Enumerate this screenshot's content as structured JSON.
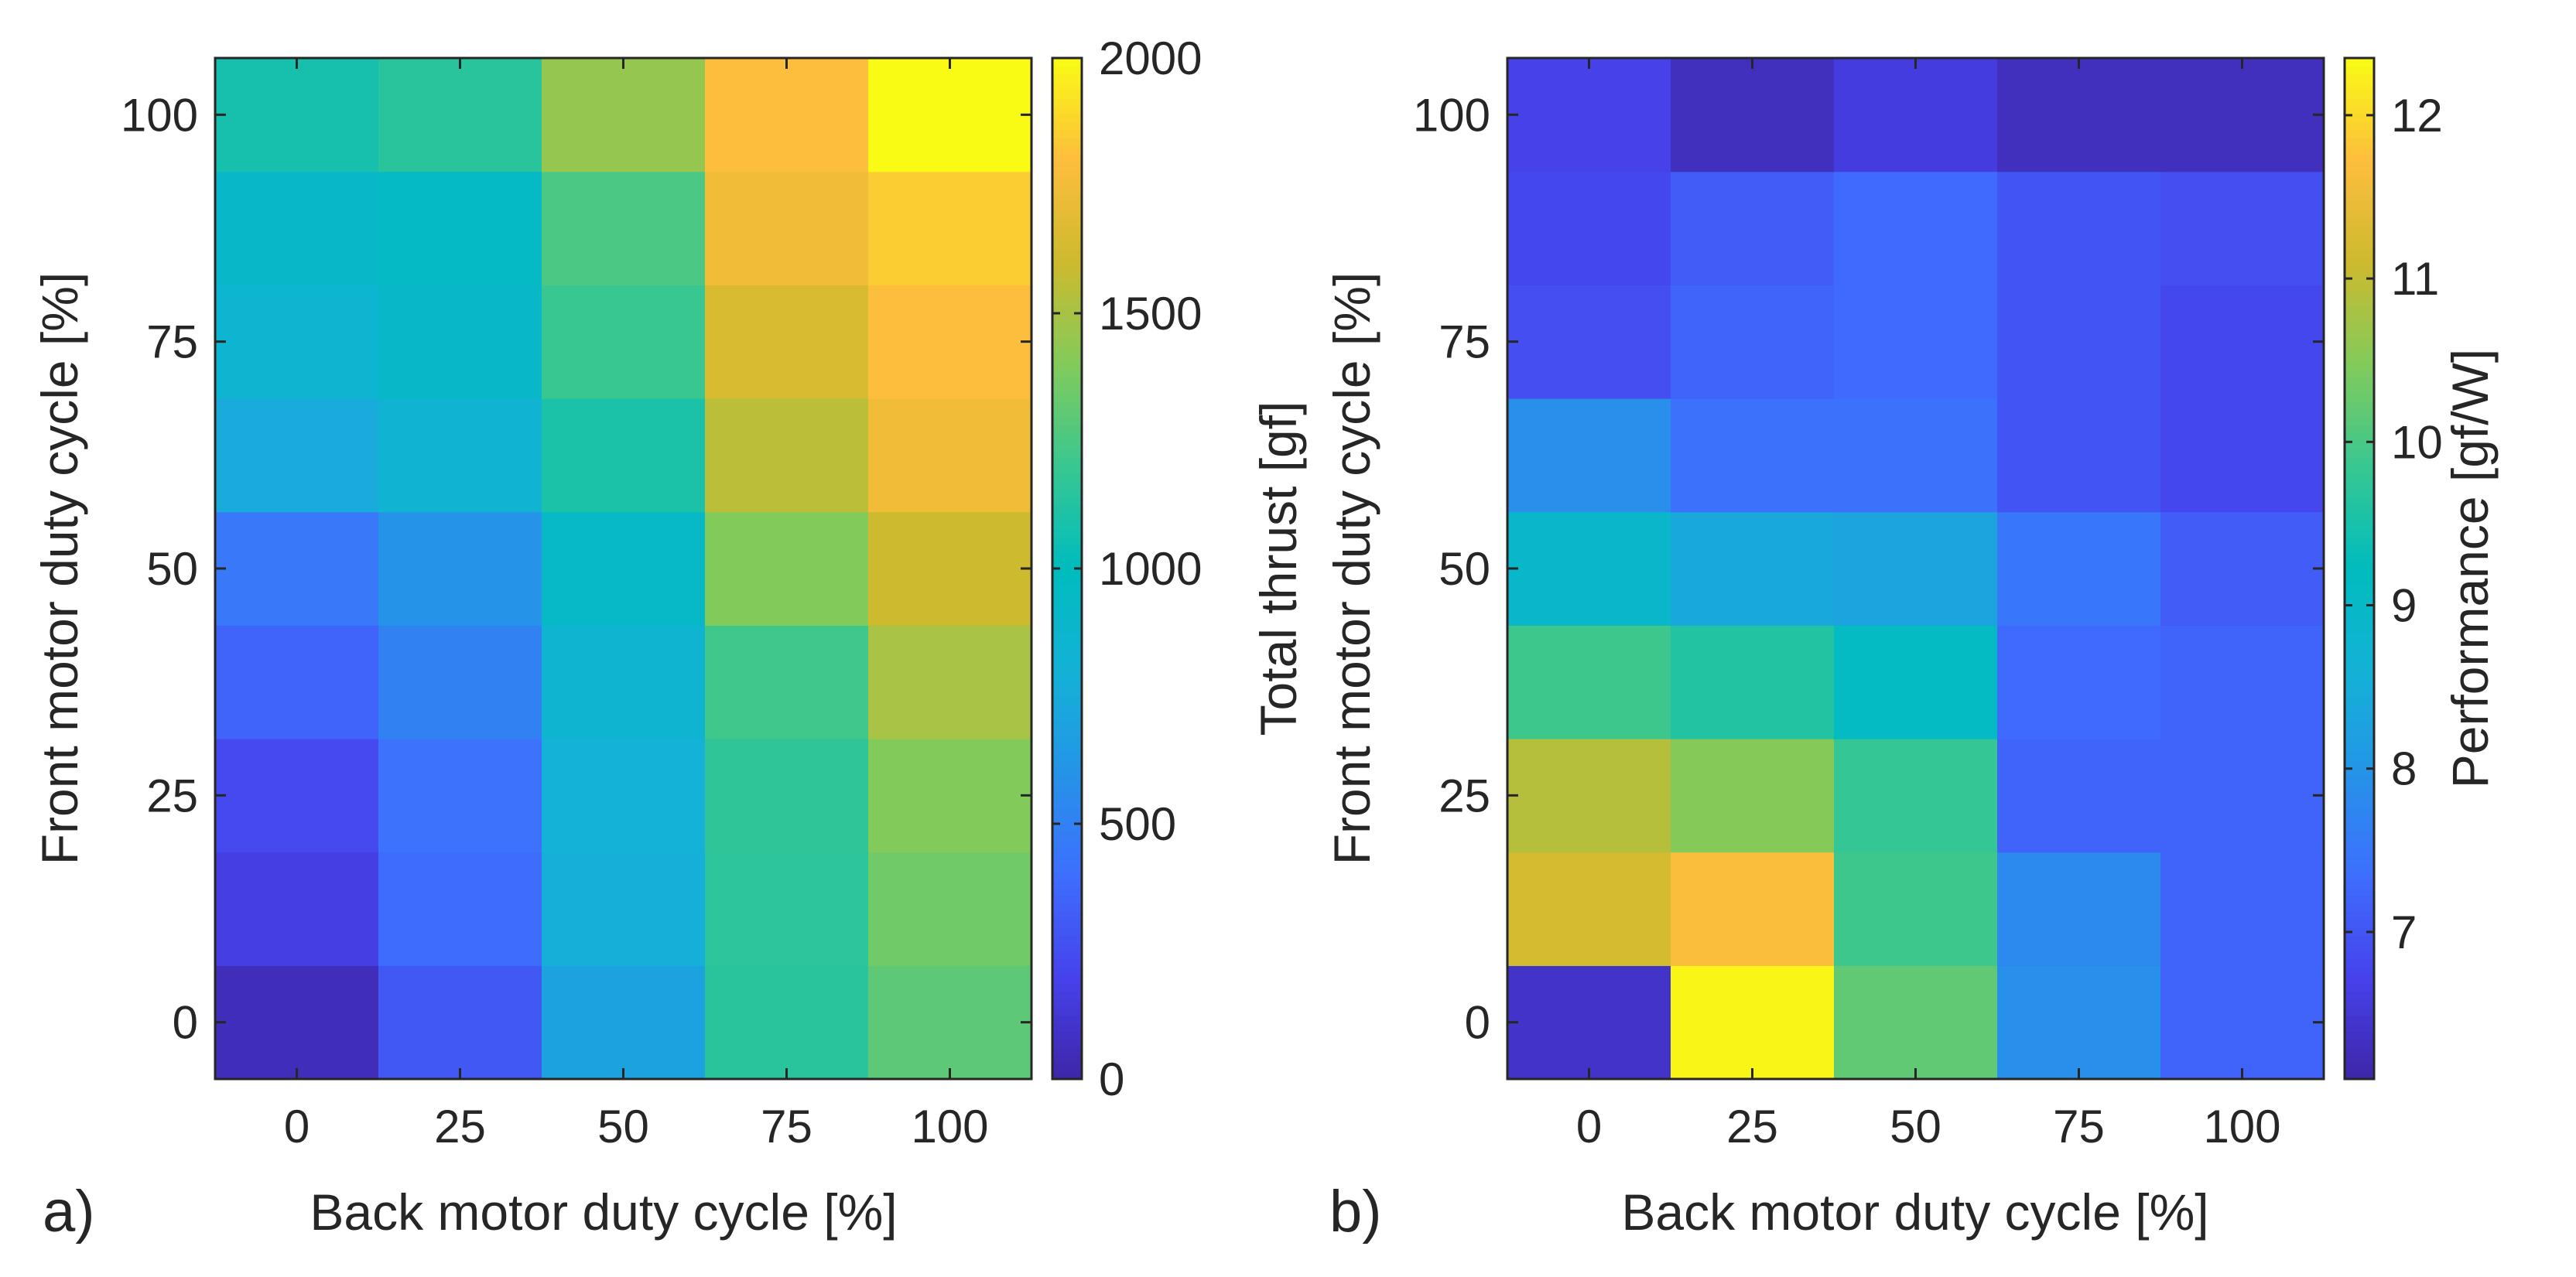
{
  "figure": {
    "panel_a_label": "a)",
    "panel_b_label": "b)"
  },
  "chart_data": [
    {
      "type": "heatmap",
      "panel": "a)",
      "title": "",
      "xlabel": "Back motor duty cycle [%]",
      "ylabel": "Front motor duty cycle [%]",
      "colorbar_label": "Total thrust [gf]",
      "x_ticks": [
        0,
        25,
        50,
        75,
        100
      ],
      "y_ticks": [
        0,
        25,
        50,
        75,
        100
      ],
      "x_values": [
        0,
        25,
        50,
        75,
        100
      ],
      "y_values": [
        0,
        12.5,
        25,
        37.5,
        50,
        62.5,
        75,
        87.5,
        100
      ],
      "z_values": [
        [
          50,
          300,
          700,
          1150,
          1300
        ],
        [
          170,
          390,
          780,
          1160,
          1350
        ],
        [
          230,
          420,
          800,
          1170,
          1400
        ],
        [
          350,
          500,
          840,
          1220,
          1500
        ],
        [
          450,
          600,
          930,
          1400,
          1600
        ],
        [
          750,
          830,
          1100,
          1550,
          1750
        ],
        [
          850,
          920,
          1200,
          1650,
          1800
        ],
        [
          920,
          950,
          1250,
          1750,
          1850
        ],
        [
          1080,
          1150,
          1450,
          1800,
          2000
        ]
      ],
      "colorbar_ticks": [
        0,
        500,
        1000,
        1500,
        2000
      ],
      "clim": [
        0,
        2000
      ],
      "colormap": "parula"
    },
    {
      "type": "heatmap",
      "panel": "b)",
      "title": "",
      "xlabel": "Back motor duty cycle [%]",
      "ylabel": "Front motor duty cycle [%]",
      "colorbar_label": "Performance [gf/W]",
      "x_ticks": [
        0,
        25,
        50,
        75,
        100
      ],
      "y_ticks": [
        0,
        25,
        50,
        75,
        100
      ],
      "x_values": [
        0,
        25,
        50,
        75,
        100
      ],
      "y_values": [
        0,
        12.5,
        25,
        37.5,
        50,
        62.5,
        75,
        87.5,
        100
      ],
      "z_values": [
        [
          6.4,
          12.3,
          10.2,
          7.9,
          7.2
        ],
        [
          11.2,
          11.7,
          9.9,
          7.8,
          7.2
        ],
        [
          10.9,
          10.5,
          9.8,
          7.2,
          7.2
        ],
        [
          9.9,
          9.6,
          9.1,
          7.3,
          7.2
        ],
        [
          8.9,
          8.4,
          8.3,
          7.5,
          7.1
        ],
        [
          7.9,
          7.4,
          7.4,
          7.0,
          6.8
        ],
        [
          6.9,
          7.2,
          7.3,
          7.0,
          6.8
        ],
        [
          6.8,
          7.1,
          7.3,
          7.0,
          6.9
        ],
        [
          6.7,
          6.3,
          6.6,
          6.3,
          6.3
        ]
      ],
      "colorbar_ticks": [
        7,
        8,
        9,
        10,
        11,
        12
      ],
      "clim": [
        6.1,
        12.35
      ],
      "colormap": "parula"
    }
  ]
}
